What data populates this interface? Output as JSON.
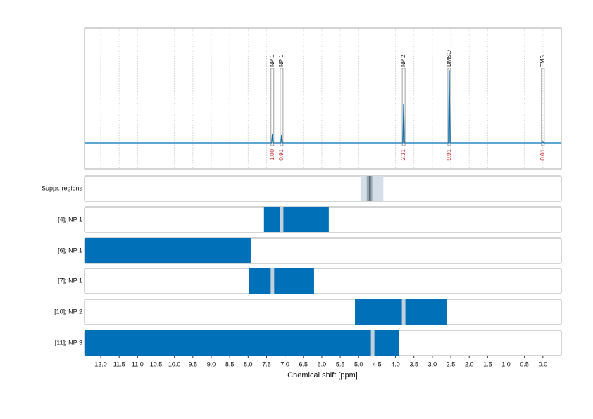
{
  "chart_data": {
    "type": "nmr",
    "xlabel": "Chemical shift [ppm]",
    "xlim": [
      12.44,
      -0.5
    ],
    "xticks": [
      {
        "value": 12,
        "label": "12.0"
      },
      11.5,
      {
        "value": 11,
        "label": "11.0"
      },
      10.5,
      {
        "value": 10,
        "label": "10.0"
      },
      9.5,
      {
        "value": 9,
        "label": "9.0"
      },
      8.5,
      {
        "value": 8,
        "label": "8.0"
      },
      7.5,
      {
        "value": 7,
        "label": "7.0"
      },
      6.5,
      {
        "value": 6,
        "label": "6.0"
      },
      5.5,
      {
        "value": 5,
        "label": "5.0"
      },
      4.5,
      {
        "value": 4,
        "label": "4.0"
      },
      3.5,
      {
        "value": 3,
        "label": "3.0"
      },
      2.5,
      {
        "value": 2,
        "label": "2.0"
      },
      1.5,
      {
        "value": 1,
        "label": "1.0"
      },
      0.5,
      {
        "value": 0,
        "label": "0.0"
      }
    ],
    "grid": true,
    "color": "#0070b8",
    "marker_color": "#c3cfda",
    "spectrum": {
      "ylim": [
        -37,
        163
      ],
      "x": [
        7.34,
        7.09,
        3.78,
        2.54,
        0.0
      ],
      "values": [
        13,
        12,
        55,
        103,
        2
      ],
      "labels": [
        "NP 1",
        "NP 1",
        "NP 2",
        "DMSO",
        "TMS"
      ],
      "integrals": [
        1.0,
        0.91,
        2.31,
        9.91,
        0.01
      ],
      "integral_labels": [
        "1.00",
        "0.91",
        "2.31",
        "9.91",
        "0.01"
      ],
      "integral_color": "#cc2222"
    },
    "rows": [
      {
        "name": "Suppr. regions",
        "ranges": [
          [
            4.95,
            4.33
          ],
          [
            4.78,
            4.63
          ],
          [
            4.72,
            4.67
          ]
        ],
        "colors": [
          "#d5dde6",
          "#9aa8b4",
          "#5d6a76"
        ],
        "markers": []
      },
      {
        "name": "[4]; NP 1",
        "ranges": [
          [
            7.57,
            5.81
          ]
        ],
        "colors": [
          "#0070b8"
        ],
        "markers": [
          7.09
        ]
      },
      {
        "name": "[6]; NP 1",
        "ranges": [
          [
            12.44,
            7.93
          ]
        ],
        "colors": [
          "#0070b8"
        ],
        "markers": []
      },
      {
        "name": "[7]; NP 1",
        "ranges": [
          [
            7.97,
            6.21
          ]
        ],
        "colors": [
          "#0070b8"
        ],
        "markers": [
          7.34
        ]
      },
      {
        "name": "[10]; NP 2",
        "ranges": [
          [
            5.1,
            2.6
          ]
        ],
        "colors": [
          "#0070b8"
        ],
        "markers": [
          3.78
        ]
      },
      {
        "name": "[11]; NP 3",
        "ranges": [
          [
            12.44,
            3.9
          ]
        ],
        "colors": [
          "#0070b8"
        ],
        "markers": [
          4.62
        ]
      }
    ]
  }
}
